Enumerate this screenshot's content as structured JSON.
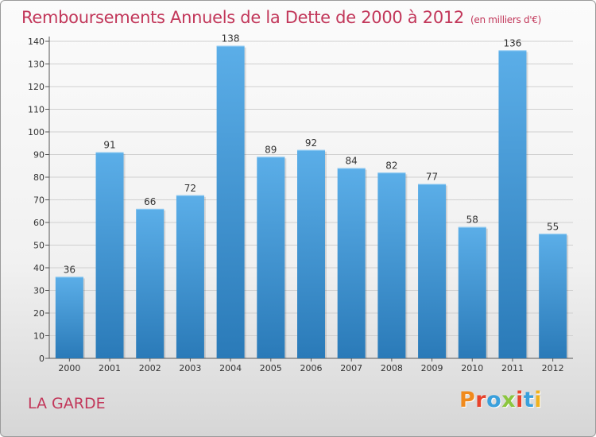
{
  "title": "Remboursements Annuels de la Dette de 2000 à 2012",
  "subtitle": "(en milliers d'€)",
  "commune": "LA GARDE",
  "logo": {
    "text": "Proxiti",
    "letters": [
      "P",
      "r",
      "o",
      "x",
      "i",
      "t",
      "i"
    ],
    "colors": [
      "#f08a1d",
      "#e8432c",
      "#3aa0dc",
      "#8cc63f",
      "#e8432c",
      "#3aa0dc",
      "#f0b21d"
    ]
  },
  "colors": {
    "bar_top": "#5baee8",
    "bar_bottom": "#2a7ab8",
    "grid": "#d0d0d0",
    "axis": "#555555",
    "title": "#c2375a"
  },
  "chart_data": {
    "type": "bar",
    "categories": [
      "2000",
      "2001",
      "2002",
      "2003",
      "2004",
      "2005",
      "2006",
      "2007",
      "2008",
      "2009",
      "2010",
      "2011",
      "2012"
    ],
    "values": [
      36,
      91,
      66,
      72,
      138,
      89,
      92,
      84,
      82,
      77,
      58,
      136,
      55
    ],
    "title": "Remboursements Annuels de la Dette de 2000 à 2012",
    "xlabel": "",
    "ylabel": "",
    "ylim": [
      0,
      140
    ],
    "yticks": [
      0,
      10,
      20,
      30,
      40,
      50,
      60,
      70,
      80,
      90,
      100,
      110,
      120,
      130,
      140
    ],
    "grid": true,
    "legend": "none",
    "data_labels": true
  }
}
